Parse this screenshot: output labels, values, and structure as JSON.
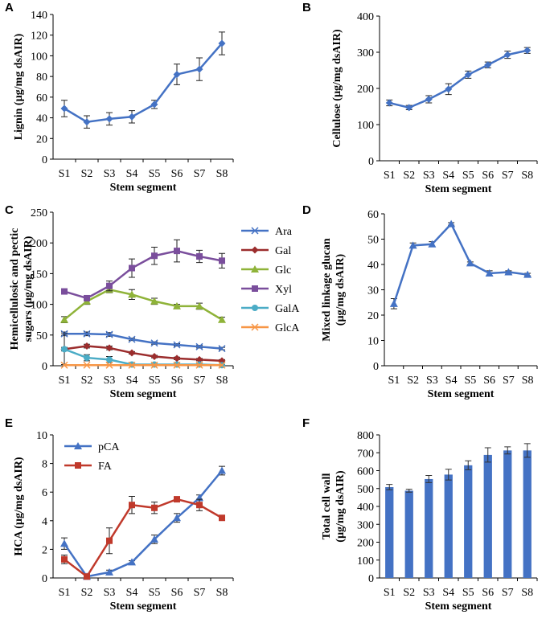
{
  "chart_data": [
    {
      "panel": "A",
      "type": "line",
      "ylabel": "Lignin (µg/mg dsAIR)",
      "xlabel": "Stem segment",
      "categories": [
        "S1",
        "S2",
        "S3",
        "S4",
        "S5",
        "S6",
        "S7",
        "S8"
      ],
      "ylim": [
        0,
        140
      ],
      "yticks": [
        0,
        20,
        40,
        60,
        80,
        100,
        120,
        140
      ],
      "series": [
        {
          "name": "Lignin",
          "color": "#4472C4",
          "marker": "diamond",
          "values": [
            49,
            36,
            39,
            41,
            53,
            82,
            87,
            112
          ],
          "errors": [
            8,
            6,
            6,
            6,
            4,
            10,
            11,
            11
          ]
        }
      ]
    },
    {
      "panel": "B",
      "type": "line",
      "ylabel": "Cellulose (µg/mg dsAIR)",
      "xlabel": "Stem segment",
      "categories": [
        "S1",
        "S2",
        "S3",
        "S4",
        "S5",
        "S6",
        "S7",
        "S8"
      ],
      "ylim": [
        0,
        400
      ],
      "yticks": [
        0,
        100,
        200,
        300,
        400
      ],
      "series": [
        {
          "name": "Cellulose",
          "color": "#4472C4",
          "marker": "diamond",
          "values": [
            160,
            147,
            170,
            198,
            238,
            265,
            293,
            305
          ],
          "errors": [
            8,
            6,
            10,
            15,
            10,
            8,
            10,
            8
          ]
        }
      ]
    },
    {
      "panel": "C",
      "type": "line",
      "ylabel": "Hemicellulosic and pectic sugars (µg/mg dsAIR)",
      "xlabel": "Stem segment",
      "categories": [
        "S1",
        "S2",
        "S3",
        "S4",
        "S5",
        "S6",
        "S7",
        "S8"
      ],
      "ylim": [
        0,
        250
      ],
      "yticks": [
        0,
        50,
        100,
        150,
        200,
        250
      ],
      "legend": "right",
      "series": [
        {
          "name": "Ara",
          "color": "#4472C4",
          "marker": "x",
          "values": [
            52,
            52,
            51,
            43,
            37,
            34,
            31,
            28
          ],
          "errors": [
            3,
            3,
            3,
            2,
            2,
            2,
            2,
            2
          ]
        },
        {
          "name": "Gal",
          "color": "#9B2D2D",
          "marker": "diamond",
          "values": [
            27,
            32,
            29,
            21,
            15,
            12,
            10,
            8
          ],
          "errors": [
            3,
            3,
            3,
            2,
            2,
            2,
            2,
            2
          ]
        },
        {
          "name": "Glc",
          "color": "#8FB339",
          "marker": "triangle",
          "values": [
            75,
            105,
            124,
            116,
            105,
            97,
            97,
            75
          ],
          "errors": [
            5,
            5,
            5,
            8,
            5,
            3,
            5,
            4
          ]
        },
        {
          "name": "Xyl",
          "color": "#7A4E9C",
          "marker": "square",
          "values": [
            121,
            110,
            130,
            159,
            179,
            187,
            178,
            171
          ],
          "errors": [
            4,
            4,
            8,
            15,
            14,
            18,
            10,
            12
          ]
        },
        {
          "name": "GalA",
          "color": "#4BACC6",
          "marker": "circle",
          "values": [
            27,
            13,
            10,
            2,
            2,
            2,
            2,
            1
          ],
          "errors": [
            25,
            5,
            5,
            1,
            1,
            1,
            1,
            1
          ]
        },
        {
          "name": "GlcA",
          "color": "#F79646",
          "marker": "x",
          "values": [
            1,
            1,
            1,
            1,
            1,
            1,
            1,
            1
          ],
          "errors": [
            0,
            0,
            0,
            0,
            0,
            0,
            0,
            0
          ]
        }
      ]
    },
    {
      "panel": "D",
      "type": "line",
      "ylabel": "Mixed linkage glucan (µg/mg dsAIR)",
      "xlabel": "Stem segment",
      "categories": [
        "S1",
        "S2",
        "S3",
        "S4",
        "S5",
        "S6",
        "S7",
        "S8"
      ],
      "ylim": [
        0,
        60
      ],
      "yticks": [
        0,
        10,
        20,
        30,
        40,
        50,
        60
      ],
      "series": [
        {
          "name": "MLG",
          "color": "#4472C4",
          "marker": "triangle",
          "values": [
            24.5,
            47.5,
            48,
            56,
            40.5,
            36.5,
            37,
            36
          ],
          "errors": [
            2,
            1,
            1,
            0.5,
            0.5,
            1,
            0.5,
            0.5
          ]
        }
      ]
    },
    {
      "panel": "E",
      "type": "line",
      "ylabel": "HCA (µg/mg dsAIR)",
      "xlabel": "Stem segment",
      "categories": [
        "S1",
        "S2",
        "S3",
        "S4",
        "S5",
        "S6",
        "S7",
        "S8"
      ],
      "ylim": [
        0,
        10
      ],
      "yticks": [
        0,
        2,
        4,
        6,
        8,
        10
      ],
      "legend": "top-left",
      "series": [
        {
          "name": "pCA",
          "color": "#4472C4",
          "marker": "triangle",
          "values": [
            2.4,
            0.1,
            0.4,
            1.1,
            2.7,
            4.2,
            5.6,
            7.5
          ],
          "errors": [
            0.4,
            0.05,
            0.15,
            0.1,
            0.3,
            0.3,
            0.2,
            0.3
          ]
        },
        {
          "name": "FA",
          "color": "#C0392B",
          "marker": "square",
          "values": [
            1.3,
            0.1,
            2.6,
            5.1,
            4.9,
            5.5,
            5.1,
            4.2
          ],
          "errors": [
            0.3,
            0.05,
            0.9,
            0.6,
            0.4,
            0.15,
            0.4,
            0.15
          ]
        }
      ]
    },
    {
      "panel": "F",
      "type": "bar",
      "ylabel": "Total cell wall (µg/mg dsAIR)",
      "xlabel": "Stem segment",
      "categories": [
        "S1",
        "S2",
        "S3",
        "S4",
        "S5",
        "S6",
        "S7",
        "S8"
      ],
      "ylim": [
        0,
        800
      ],
      "yticks": [
        0,
        100,
        200,
        300,
        400,
        500,
        600,
        700,
        800
      ],
      "series": [
        {
          "name": "Total cell wall",
          "color": "#4472C4",
          "values": [
            508,
            488,
            553,
            578,
            630,
            688,
            713,
            713
          ],
          "errors": [
            15,
            8,
            20,
            30,
            25,
            40,
            20,
            38
          ]
        }
      ]
    }
  ]
}
